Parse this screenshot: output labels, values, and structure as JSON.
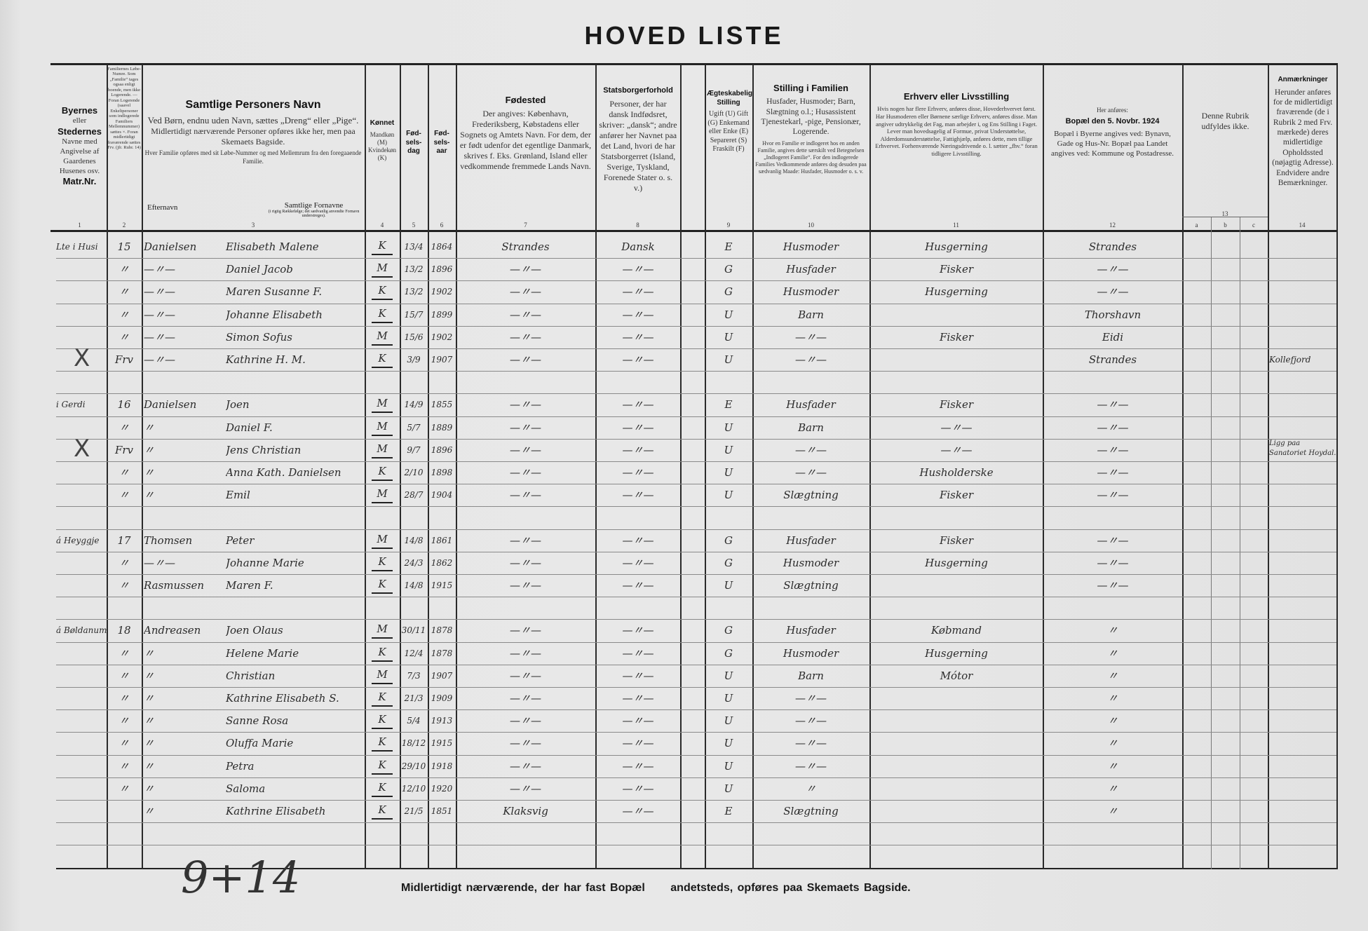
{
  "title": "HOVED LISTE",
  "headers": {
    "c1": {
      "lines": [
        "Byernes",
        "eller",
        "Stedernes",
        "Navne med Angivelse af Gaardenes Husenes osv.",
        "Matr.Nr."
      ]
    },
    "c2": {
      "text": "Familiernes Løbe-Numre. Som „Familie“ tages ogsaa enligt boende, men ikke Logerende. — Foran Logerende (saavel Enkeltpersoner som indlogerede Familiers Mellemnummer) sættes ×. Foran midlertidigt fraværende sættes Frv. (jfr. Rubr. 14)"
    },
    "c3": {
      "title": "Samtlige Personers Navn",
      "l1": "Ved Børn, endnu uden Navn, sættes „Dreng“ eller „Pige“.",
      "l2": "Midlertidigt nærværende Personer opføres ikke her, men paa Skemaets Bagside.",
      "l3": "Hver Familie opføres med sit Løbe-Nummer og med Mellemrum fra den foregaaende Familie.",
      "efternavn": "Efternavn",
      "fornavne": "Samtlige Fornavne",
      "fornavne_note": "(i rigtig Rækkefølge; det sædvanlig anvendte Fornavn understreges)."
    },
    "c4": {
      "title": "Kønnet",
      "text": "Mandkøn (M) Kvindekøn (K)"
    },
    "c5": {
      "title": "Fød-sels-dag"
    },
    "c6": {
      "title": "Fød-sels-aar"
    },
    "c7": {
      "title": "Fødested",
      "text": "Der angives: København, Frederiksberg, Købstadens eller Sognets og Amtets Navn. For dem, der er født udenfor det egentlige Danmark, skrives f. Eks. Grønland, Island eller vedkommende fremmede Lands Navn."
    },
    "c8": {
      "title": "Statsborgerforhold",
      "text": "Personer, der har dansk Indfødsret, skriver: „dansk“; andre anfører her Navnet paa det Land, hvori de har Statsborgerret (Island, Sverige, Tyskland, Forenede Stater o. s. v.)"
    },
    "c9": {
      "title": "Ægteskabelig Stilling",
      "text": "Ugift (U) Gift (G) Enkemand eller Enke (E) Separeret (S) Fraskilt (F)"
    },
    "c10": {
      "title": "Stilling i Familien",
      "text": "Husfader, Husmoder; Barn, Slægtning o.l.; Husassistent Tjenestekarl, -pige, Pensionær, Logerende.",
      "note": "Hvor en Familie er indlogeret hos en anden Familie, angives dette særskilt ved Betegnelsen „Indlogeret Familie“. For den indlogerede Families Vedkommende anføres dog desuden paa sædvanlig Maade: Husfader, Husmoder o. s. v."
    },
    "c11": {
      "title": "Erhverv eller Livsstilling",
      "text": "Hvis nogen har flere Erhverv, anføres disse, Hovederhvervet først. Har Husmoderen eller Børnene særlige Erhverv, anføres disse. Man angiver udtrykkelig det Fag, man arbejder i, og Ens Stilling i Faget. Lever man hovedsagelig af Formue, privat Understøttelse, Alderdomsunderstøttelse, Fattighjælp, anføres dette, men tillige Erhvervet. Forhenværende Næringsdrivende o. l. sætter „fhv.“ foran tidligere Livsstilling."
    },
    "c12": {
      "pre": "Her anføres:",
      "title": "Bopæl den 5. Novbr. 1924",
      "text": "Bopæl i Byerne angives ved: Bynavn, Gade og Hus-Nr. Bopæl paa Landet angives ved: Kommune og Postadresse."
    },
    "c13": {
      "text": "Denne Rubrik udfyldes ikke.",
      "sub": [
        "a",
        "b",
        "c"
      ]
    },
    "c14": {
      "title": "Anmærkninger",
      "text": "Herunder anføres for de midlertidigt fraværende (de i Rubrik 2 med Frv. mærkede) deres midlertidige Opholdssted (nøjagtig Adresse). Endvidere andre Bemærkninger."
    },
    "numbers": [
      "1",
      "2",
      "3",
      "4",
      "5",
      "6",
      "7",
      "8",
      "9",
      "10",
      "11",
      "12",
      "13",
      "14"
    ]
  },
  "rows": [
    {
      "place": "Lte i Husi",
      "fam": "15",
      "surname": "Danielsen",
      "given": "Elisabeth Malene",
      "sex": "K",
      "day": "13/4",
      "year": "1864",
      "birthplace": "Strandes",
      "citizen": "Dansk",
      "marital": "E",
      "position": "Husmoder",
      "occupation": "Husgerning",
      "residence": "Strandes",
      "remarks": "",
      "mark": ""
    },
    {
      "place": "",
      "fam": "〃",
      "surname": "—〃—",
      "given": "Daniel Jacob",
      "sex": "M",
      "day": "13/2",
      "year": "1896",
      "birthplace": "—〃—",
      "citizen": "—〃—",
      "marital": "G",
      "position": "Husfader",
      "occupation": "Fisker",
      "residence": "—〃—",
      "remarks": "",
      "mark": ""
    },
    {
      "place": "",
      "fam": "〃",
      "surname": "—〃—",
      "given": "Maren Susanne F.",
      "sex": "K",
      "day": "13/2",
      "year": "1902",
      "birthplace": "—〃—",
      "citizen": "—〃—",
      "marital": "G",
      "position": "Husmoder",
      "occupation": "Husgerning",
      "residence": "—〃—",
      "remarks": "",
      "mark": ""
    },
    {
      "place": "",
      "fam": "〃",
      "surname": "—〃—",
      "given": "Johanne Elisabeth",
      "sex": "K",
      "day": "15/7",
      "year": "1899",
      "birthplace": "—〃—",
      "citizen": "—〃—",
      "marital": "U",
      "position": "Barn",
      "occupation": "",
      "residence": "Thorshavn",
      "remarks": "",
      "mark": ""
    },
    {
      "place": "",
      "fam": "〃",
      "surname": "—〃—",
      "given": "Simon Sofus",
      "sex": "M",
      "day": "15/6",
      "year": "1902",
      "birthplace": "—〃—",
      "citizen": "—〃—",
      "marital": "U",
      "position": "—〃—",
      "occupation": "Fisker",
      "residence": "Eidi",
      "remarks": "",
      "mark": ""
    },
    {
      "place": "",
      "fam": "Frv",
      "surname": "—〃—",
      "given": "Kathrine H. M.",
      "sex": "K",
      "day": "3/9",
      "year": "1907",
      "birthplace": "—〃—",
      "citizen": "—〃—",
      "marital": "U",
      "position": "—〃—",
      "occupation": "",
      "residence": "Strandes",
      "remarks": "Kollefjord",
      "mark": "X"
    },
    {
      "blank": true
    },
    {
      "place": "i Gerdi",
      "fam": "16",
      "surname": "Danielsen",
      "given": "Joen",
      "sex": "M",
      "day": "14/9",
      "year": "1855",
      "birthplace": "—〃—",
      "citizen": "—〃—",
      "marital": "E",
      "position": "Husfader",
      "occupation": "Fisker",
      "residence": "—〃—",
      "remarks": "",
      "mark": ""
    },
    {
      "place": "",
      "fam": "〃",
      "surname": "〃",
      "given": "Daniel F.",
      "sex": "M",
      "day": "5/7",
      "year": "1889",
      "birthplace": "—〃—",
      "citizen": "—〃—",
      "marital": "U",
      "position": "Barn",
      "occupation": "—〃—",
      "residence": "—〃—",
      "remarks": "",
      "mark": ""
    },
    {
      "place": "",
      "fam": "Frv",
      "surname": "〃",
      "given": "Jens Christian",
      "sex": "M",
      "day": "9/7",
      "year": "1896",
      "birthplace": "—〃—",
      "citizen": "—〃—",
      "marital": "U",
      "position": "—〃—",
      "occupation": "—〃—",
      "residence": "—〃—",
      "remarks": "Ligg paa Sanatoriet Hoydal.",
      "mark": "X"
    },
    {
      "place": "",
      "fam": "〃",
      "surname": "〃",
      "given": "Anna Kath. Danielsen",
      "sex": "K",
      "day": "2/10",
      "year": "1898",
      "birthplace": "—〃—",
      "citizen": "—〃—",
      "marital": "U",
      "position": "—〃—",
      "occupation": "Husholderske",
      "residence": "—〃—",
      "remarks": "",
      "mark": ""
    },
    {
      "place": "",
      "fam": "〃",
      "surname": "〃",
      "given": "Emil",
      "sex": "M",
      "day": "28/7",
      "year": "1904",
      "birthplace": "—〃—",
      "citizen": "—〃—",
      "marital": "U",
      "position": "Slægtning",
      "occupation": "Fisker",
      "residence": "—〃—",
      "remarks": "",
      "mark": ""
    },
    {
      "blank": true
    },
    {
      "place": "á Heyggje",
      "fam": "17",
      "surname": "Thomsen",
      "given": "Peter",
      "sex": "M",
      "day": "14/8",
      "year": "1861",
      "birthplace": "—〃—",
      "citizen": "—〃—",
      "marital": "G",
      "position": "Husfader",
      "occupation": "Fisker",
      "residence": "—〃—",
      "remarks": "",
      "mark": ""
    },
    {
      "place": "",
      "fam": "〃",
      "surname": "—〃—",
      "given": "Johanne Marie",
      "sex": "K",
      "day": "24/3",
      "year": "1862",
      "birthplace": "—〃—",
      "citizen": "—〃—",
      "marital": "G",
      "position": "Husmoder",
      "occupation": "Husgerning",
      "residence": "—〃—",
      "remarks": "",
      "mark": ""
    },
    {
      "place": "",
      "fam": "〃",
      "surname": "Rasmussen",
      "given": "Maren F.",
      "sex": "K",
      "day": "14/8",
      "year": "1915",
      "birthplace": "—〃—",
      "citizen": "—〃—",
      "marital": "U",
      "position": "Slægtning",
      "occupation": "",
      "residence": "—〃—",
      "remarks": "",
      "mark": ""
    },
    {
      "blank": true
    },
    {
      "place": "á Bøldanum",
      "fam": "18",
      "surname": "Andreasen",
      "given": "Joen Olaus",
      "sex": "M",
      "day": "30/11",
      "year": "1878",
      "birthplace": "—〃—",
      "citizen": "—〃—",
      "marital": "G",
      "position": "Husfader",
      "occupation": "Købmand",
      "residence": "〃",
      "remarks": "",
      "mark": ""
    },
    {
      "place": "",
      "fam": "〃",
      "surname": "〃",
      "given": "Helene Marie",
      "sex": "K",
      "day": "12/4",
      "year": "1878",
      "birthplace": "—〃—",
      "citizen": "—〃—",
      "marital": "G",
      "position": "Husmoder",
      "occupation": "Husgerning",
      "residence": "〃",
      "remarks": "",
      "mark": ""
    },
    {
      "place": "",
      "fam": "〃",
      "surname": "〃",
      "given": "Christian",
      "sex": "M",
      "day": "7/3",
      "year": "1907",
      "birthplace": "—〃—",
      "citizen": "—〃—",
      "marital": "U",
      "position": "Barn",
      "occupation": "Mótor",
      "residence": "〃",
      "remarks": "",
      "mark": ""
    },
    {
      "place": "",
      "fam": "〃",
      "surname": "〃",
      "given": "Kathrine Elisabeth S.",
      "sex": "K",
      "day": "21/3",
      "year": "1909",
      "birthplace": "—〃—",
      "citizen": "—〃—",
      "marital": "U",
      "position": "—〃—",
      "occupation": "",
      "residence": "〃",
      "remarks": "",
      "mark": ""
    },
    {
      "place": "",
      "fam": "〃",
      "surname": "〃",
      "given": "Sanne Rosa",
      "sex": "K",
      "day": "5/4",
      "year": "1913",
      "birthplace": "—〃—",
      "citizen": "—〃—",
      "marital": "U",
      "position": "—〃—",
      "occupation": "",
      "residence": "〃",
      "remarks": "",
      "mark": ""
    },
    {
      "place": "",
      "fam": "〃",
      "surname": "〃",
      "given": "Oluffa Marie",
      "sex": "K",
      "day": "18/12",
      "year": "1915",
      "birthplace": "—〃—",
      "citizen": "—〃—",
      "marital": "U",
      "position": "—〃—",
      "occupation": "",
      "residence": "〃",
      "remarks": "",
      "mark": ""
    },
    {
      "place": "",
      "fam": "〃",
      "surname": "〃",
      "given": "Petra",
      "sex": "K",
      "day": "29/10",
      "year": "1918",
      "birthplace": "—〃—",
      "citizen": "—〃—",
      "marital": "U",
      "position": "—〃—",
      "occupation": "",
      "residence": "〃",
      "remarks": "",
      "mark": ""
    },
    {
      "place": "",
      "fam": "〃",
      "surname": "〃",
      "given": "Saloma",
      "sex": "K",
      "day": "12/10",
      "year": "1920",
      "birthplace": "—〃—",
      "citizen": "—〃—",
      "marital": "U",
      "position": "〃",
      "occupation": "",
      "residence": "〃",
      "remarks": "",
      "mark": ""
    },
    {
      "place": "",
      "fam": "",
      "surname": "〃",
      "given": "Kathrine Elisabeth",
      "sex": "K",
      "day": "21/5",
      "year": "1851",
      "birthplace": "Klaksvig",
      "citizen": "—〃—",
      "marital": "E",
      "position": "Slægtning",
      "occupation": "",
      "residence": "〃",
      "remarks": "",
      "mark": ""
    },
    {
      "blank": true
    }
  ],
  "footer": {
    "left": "Midlertidigt nærværende, der har fast Bopæl",
    "right": "andetsteds, opføres paa Skemaets Bagside."
  },
  "tally": "9+14"
}
